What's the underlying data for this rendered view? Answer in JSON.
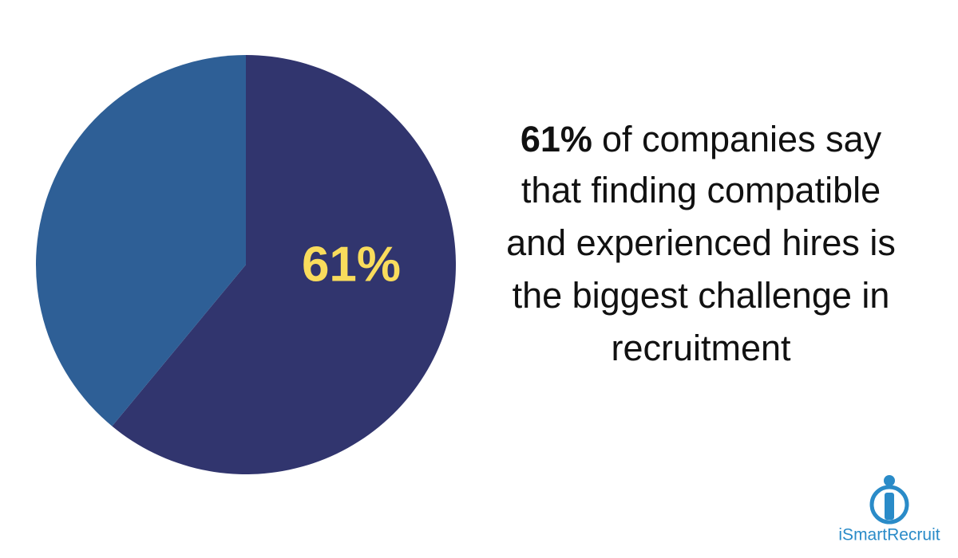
{
  "chart_data": {
    "type": "pie",
    "values": [
      61,
      39
    ],
    "value_labels": [
      "61%",
      null
    ],
    "colors": [
      "#31356e",
      "#2e5f96"
    ],
    "label_color": "#f9dc5c",
    "annotation": {
      "emphasis": "61%",
      "lines": [
        "of companies say",
        "that finding compatible",
        "and experienced hires is",
        "the biggest challenge in",
        "recruitment"
      ]
    }
  },
  "logo": {
    "text": "iSmartRecruit",
    "color": "#2a8bc8"
  }
}
